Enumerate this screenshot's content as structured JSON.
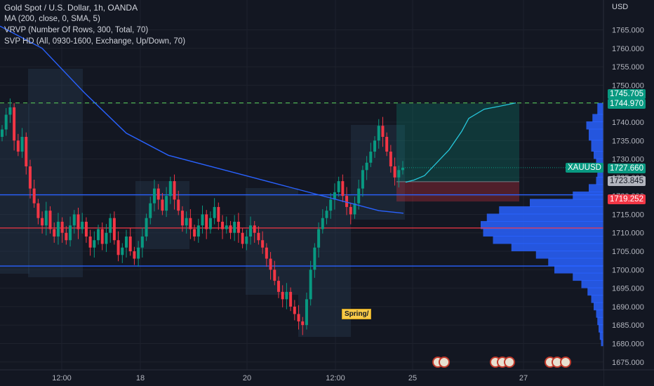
{
  "header": {
    "title": "Gold Spot / U.S. Dollar, 1h, OANDA",
    "indicators": [
      "MA (200, close, 0, SMA, 5)",
      "VRVP (Number Of Rows, 300, Total, 70)",
      "SVP HD (All, 0930-1600, Exchange, Up/Down, 70)"
    ]
  },
  "price_axis": {
    "currency": "USD",
    "ticks": [
      "1765.000",
      "1760.000",
      "1755.000",
      "1750.000",
      "1745.000",
      "1740.000",
      "1735.000",
      "1730.000",
      "1725.000",
      "1720.000",
      "1715.000",
      "1710.000",
      "1705.000",
      "1700.000",
      "1695.000",
      "1690.000",
      "1685.000",
      "1680.000",
      "1675.000"
    ]
  },
  "time_axis": {
    "ticks": [
      "12:00",
      "18",
      "20",
      "12:00",
      "25",
      "27"
    ]
  },
  "price_labels": {
    "target_upper": {
      "text": "1745.705",
      "color": "#089981"
    },
    "target_lower": {
      "text": "1744.970",
      "color": "#089981"
    },
    "symbol": {
      "text": "XAUUSD",
      "color": "#089981"
    },
    "last_price": {
      "text": "1727.660",
      "color": "#089981"
    },
    "entry": {
      "text": "1723.845",
      "color": "#b2b5be"
    },
    "stop": {
      "text": "1719.252",
      "color": "#f23645"
    }
  },
  "annotation": {
    "text": "Spring/"
  },
  "chart_data": {
    "type": "candlestick",
    "symbol": "XAUUSD",
    "title": "Gold Spot / U.S. Dollar, 1h, OANDA",
    "ylim": [
      1672,
      1769
    ],
    "price_tick_step": 5,
    "horizontal_levels": [
      {
        "price": 1745.2,
        "style": "dashed",
        "color": "#4caf50"
      },
      {
        "price": 1720.3,
        "style": "solid",
        "color": "#2962ff"
      },
      {
        "price": 1711.3,
        "style": "solid",
        "color": "#f23645"
      },
      {
        "price": 1701.0,
        "style": "solid",
        "color": "#2962ff"
      }
    ],
    "position": {
      "target": 1745.0,
      "entry": 1723.845,
      "stop": 1719.252
    },
    "last_price": 1727.66,
    "closes": [
      1738,
      1742,
      1744,
      1735,
      1732,
      1736,
      1728,
      1722,
      1718,
      1714,
      1712,
      1716,
      1711,
      1709,
      1713,
      1710,
      1708,
      1712,
      1715,
      1711,
      1713,
      1709,
      1706,
      1708,
      1711,
      1707,
      1710,
      1714,
      1708,
      1704,
      1706,
      1709,
      1705,
      1703,
      1706,
      1709,
      1714,
      1718,
      1722,
      1719,
      1716,
      1720,
      1724,
      1719,
      1716,
      1712,
      1714,
      1711,
      1709,
      1712,
      1715,
      1711,
      1714,
      1717,
      1713,
      1711,
      1712,
      1710,
      1713,
      1710,
      1707,
      1709,
      1712,
      1710,
      1708,
      1706,
      1703,
      1700,
      1697,
      1694,
      1692,
      1694,
      1690,
      1688,
      1686,
      1685,
      1692,
      1700,
      1706,
      1711,
      1714,
      1716,
      1719,
      1721,
      1724,
      1720,
      1717,
      1715,
      1718,
      1722,
      1727,
      1729,
      1732,
      1735,
      1739,
      1736,
      1732,
      1728,
      1725,
      1727,
      1727.66
    ],
    "ma200": [
      [
        0,
        1766
      ],
      [
        60,
        1760
      ],
      [
        120,
        1748
      ],
      [
        180,
        1737
      ],
      [
        240,
        1731
      ],
      [
        300,
        1728
      ],
      [
        360,
        1725
      ],
      [
        420,
        1722
      ],
      [
        480,
        1719
      ],
      [
        540,
        1716
      ],
      [
        575,
        1715.3
      ]
    ],
    "vrvp_volume_profile": {
      "bins": [
        [
          1745,
          0.05
        ],
        [
          1742,
          0.09
        ],
        [
          1740,
          0.14
        ],
        [
          1738,
          0.12
        ],
        [
          1735,
          0.1
        ],
        [
          1732,
          0.08
        ],
        [
          1730,
          0.06
        ],
        [
          1727,
          0.05
        ],
        [
          1725,
          0.06
        ],
        [
          1723,
          0.12
        ],
        [
          1721,
          0.25
        ],
        [
          1719,
          0.6
        ],
        [
          1717,
          0.85
        ],
        [
          1715,
          0.95
        ],
        [
          1713,
          1.0
        ],
        [
          1711,
          0.98
        ],
        [
          1709,
          0.9
        ],
        [
          1707,
          0.75
        ],
        [
          1705,
          0.55
        ],
        [
          1703,
          0.45
        ],
        [
          1701,
          0.4
        ],
        [
          1699,
          0.25
        ],
        [
          1697,
          0.18
        ],
        [
          1695,
          0.13
        ],
        [
          1693,
          0.1
        ],
        [
          1691,
          0.08
        ],
        [
          1689,
          0.06
        ],
        [
          1687,
          0.05
        ],
        [
          1685,
          0.04
        ],
        [
          1683,
          0.03
        ],
        [
          1681,
          0.02
        ]
      ]
    },
    "forecast_path": [
      [
        578,
        1723.7
      ],
      [
        590,
        1724.3
      ],
      [
        605,
        1725.5
      ],
      [
        620,
        1728.5
      ],
      [
        640,
        1732.5
      ],
      [
        658,
        1737.5
      ],
      [
        668,
        1741
      ],
      [
        690,
        1743.5
      ],
      [
        712,
        1744.3
      ],
      [
        735,
        1745.2
      ]
    ]
  }
}
